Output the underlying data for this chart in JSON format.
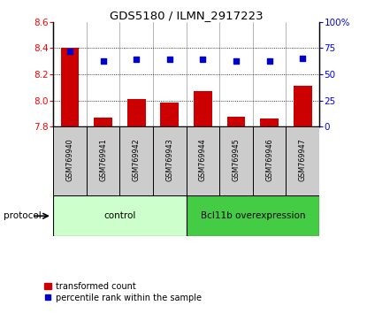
{
  "title": "GDS5180 / ILMN_2917223",
  "samples": [
    "GSM769940",
    "GSM769941",
    "GSM769942",
    "GSM769943",
    "GSM769944",
    "GSM769945",
    "GSM769946",
    "GSM769947"
  ],
  "bar_values": [
    8.4,
    7.87,
    8.01,
    7.985,
    8.07,
    7.875,
    7.86,
    8.11
  ],
  "dot_values": [
    72,
    63,
    64,
    64,
    64,
    63,
    63,
    65
  ],
  "ylim_left": [
    7.8,
    8.6
  ],
  "ylim_right": [
    0,
    100
  ],
  "yticks_left": [
    7.8,
    8.0,
    8.2,
    8.4,
    8.6
  ],
  "yticks_right": [
    0,
    25,
    50,
    75,
    100
  ],
  "bar_color": "#cc0000",
  "dot_color": "#0000cc",
  "bar_baseline": 7.8,
  "protocol_groups": [
    {
      "label": "control",
      "start": 0,
      "end": 4,
      "color": "#ccffcc"
    },
    {
      "label": "Bcl11b overexpression",
      "start": 4,
      "end": 8,
      "color": "#44cc44"
    }
  ],
  "protocol_label": "protocol",
  "legend_bar_label": "transformed count",
  "legend_dot_label": "percentile rank within the sample",
  "background_color": "#ffffff",
  "plot_bg_color": "#ffffff",
  "tick_label_bg": "#cccccc",
  "grid_dotted_values": [
    8.0,
    8.2,
    8.4
  ]
}
